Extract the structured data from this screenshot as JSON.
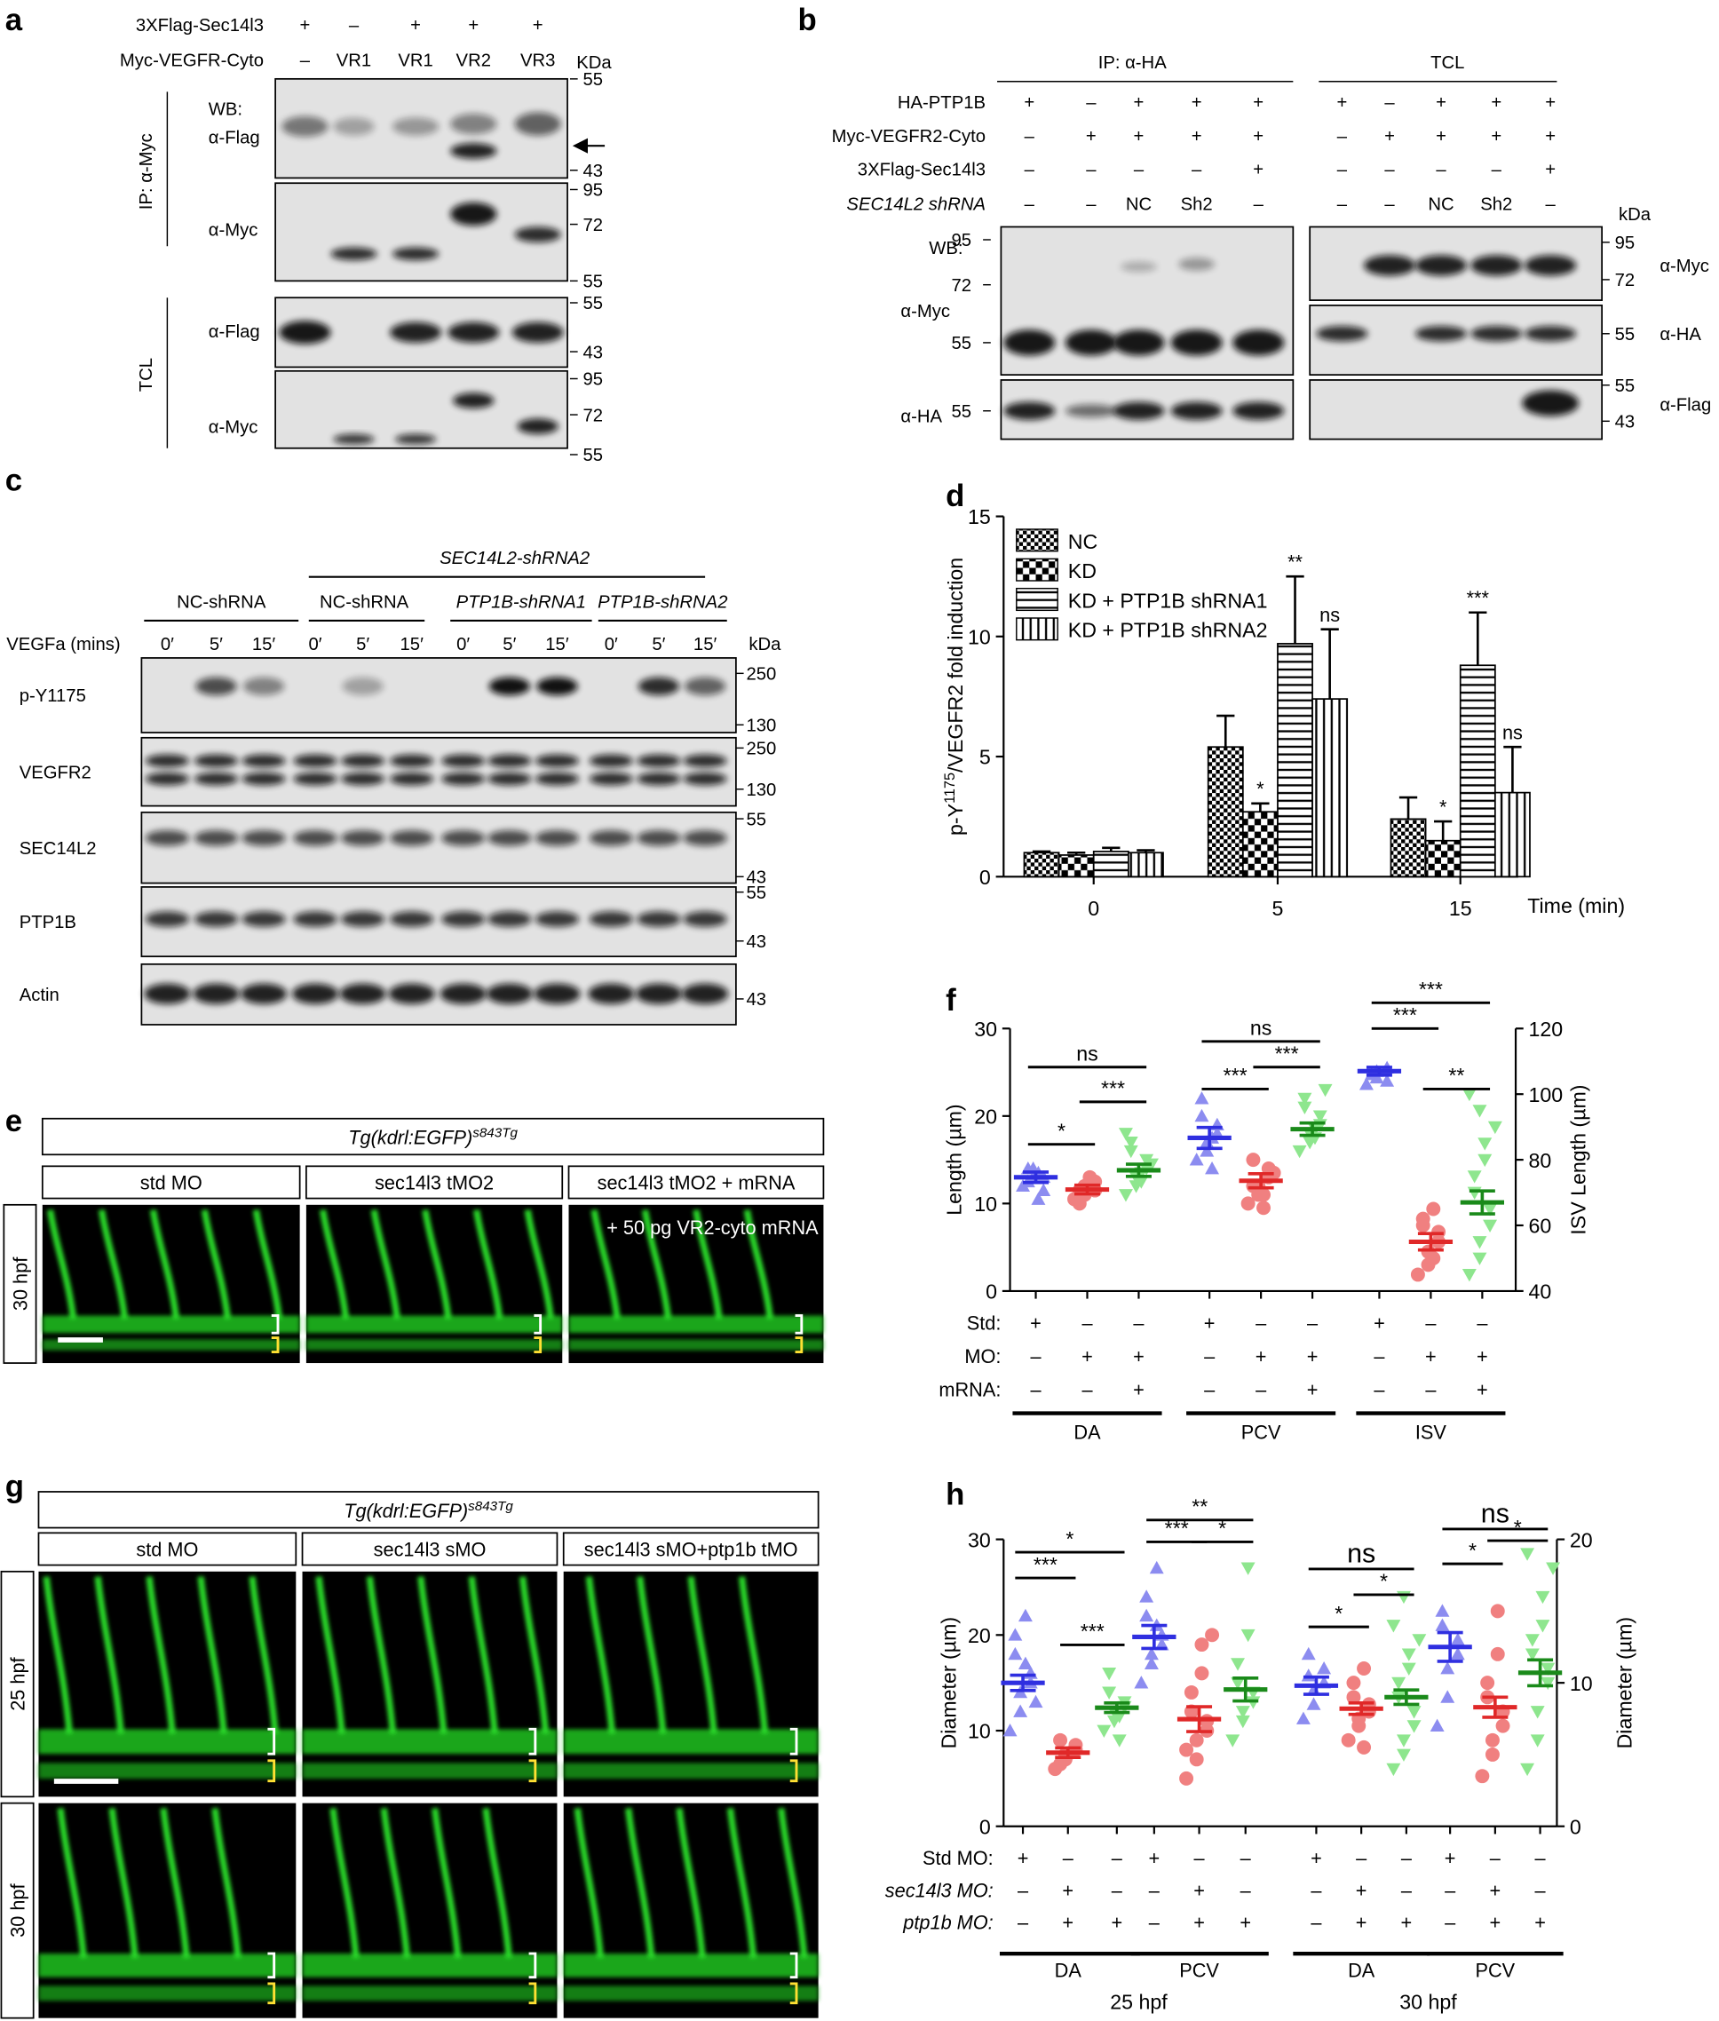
{
  "panel_a": {
    "letter": "a",
    "conditions": [
      {
        "label": "3XFlag-Sec14l3",
        "values": [
          "+",
          "–",
          "+",
          "+",
          "+"
        ]
      },
      {
        "label": "Myc-VEGFR-Cyto",
        "values": [
          "–",
          "VR1",
          "VR1",
          "VR2",
          "VR3"
        ]
      }
    ],
    "unit": "KDa",
    "groups": [
      "IP: α-Myc",
      "TCL"
    ],
    "blots": [
      {
        "labels": [
          "WB:",
          "α-Flag"
        ],
        "markers": [
          55,
          43
        ]
      },
      {
        "labels": [
          "α-Myc"
        ],
        "markers": [
          95,
          72,
          55
        ]
      },
      {
        "labels": [
          "α-Flag"
        ],
        "markers": [
          55,
          43
        ]
      },
      {
        "labels": [
          "α-Myc"
        ],
        "markers": [
          95,
          72,
          55
        ]
      }
    ]
  },
  "panel_b": {
    "letter": "b",
    "groups": [
      "IP: α-HA",
      "TCL"
    ],
    "conditions": [
      {
        "label": "HA-PTP1B",
        "values": [
          "+",
          "–",
          "+",
          "+",
          "+",
          "+",
          "–",
          "+",
          "+",
          "+"
        ]
      },
      {
        "label": "Myc-VEGFR2-Cyto",
        "values": [
          "–",
          "+",
          "+",
          "+",
          "+",
          "–",
          "+",
          "+",
          "+",
          "+"
        ]
      },
      {
        "label": "3XFlag-Sec14l3",
        "values": [
          "–",
          "–",
          "–",
          "–",
          "+",
          "–",
          "–",
          "–",
          "–",
          "+"
        ]
      },
      {
        "label": "SEC14L2 shRNA",
        "values": [
          "–",
          "–",
          "NC",
          "Sh2",
          "–",
          "–",
          "–",
          "NC",
          "Sh2",
          "–"
        ]
      }
    ],
    "unit": "kDa",
    "wb": "WB:",
    "blots": [
      {
        "label": "α-Myc",
        "markers": [
          95,
          72,
          55
        ]
      },
      {
        "label": "α-HA",
        "markers": [
          55
        ]
      },
      {
        "label": "α-Myc",
        "markers": [
          95,
          72
        ]
      },
      {
        "label": "α-HA",
        "markers": [
          55
        ]
      },
      {
        "label": "α-Flag",
        "markers": [
          55,
          43
        ]
      }
    ]
  },
  "panel_c": {
    "letter": "c",
    "treatment": "SEC14L2-shRNA2",
    "groups": [
      "NC-shRNA",
      "NC-shRNA",
      "PTP1B-shRNA1",
      "PTP1B-shRNA2"
    ],
    "time_label": "VEGFa (mins)",
    "times": [
      "0′",
      "5′",
      "15′",
      "0′",
      "5′",
      "15′",
      "0′",
      "5′",
      "15′",
      "0′",
      "5′",
      "15′"
    ],
    "unit": "kDa",
    "blots": [
      {
        "label": "p-Y1175",
        "markers": [
          250,
          130
        ]
      },
      {
        "label": "VEGFR2",
        "markers": [
          250,
          130
        ]
      },
      {
        "label": "SEC14L2",
        "markers": [
          55,
          43
        ]
      },
      {
        "label": "PTP1B",
        "markers": [
          55,
          43
        ]
      },
      {
        "label": "Actin",
        "markers": [
          43
        ]
      }
    ]
  },
  "panel_e": {
    "letter": "e",
    "title": {
      "text": "Tg(kdrl:EGFP)",
      "sup": "s843Tg"
    },
    "conditions": [
      "std MO",
      "sec14l3 tMO2",
      "sec14l3 tMO2 + mRNA"
    ],
    "stages": [
      "30 hpf"
    ],
    "rescue": "+ 50 pg VR2-cyto mRNA"
  },
  "panel_g": {
    "letter": "g",
    "title": {
      "text": "Tg(kdrl:EGFP)",
      "sup": "s843Tg"
    },
    "conditions": [
      "std MO",
      "sec14l3 sMO",
      "sec14l3 sMO+ptp1b tMO"
    ],
    "stages": [
      "25 hpf",
      "30 hpf"
    ]
  },
  "chart_data": [
    {
      "type": "bar",
      "letter": "d",
      "y_label": {
        "prefix": "p-Y",
        "sup": "1175",
        "suffix": "/VEGFR2 fold induction"
      },
      "x_label": "Time (min)",
      "categories": [
        "0",
        "5",
        "15"
      ],
      "ylim": [
        0,
        15
      ],
      "yticks": [
        0,
        5,
        10,
        15
      ],
      "legend": "top-left",
      "series": [
        {
          "name": "NC",
          "pattern": "fine-check",
          "values": [
            1.0,
            5.4,
            2.4
          ],
          "errors": [
            0.05,
            1.3,
            0.9
          ],
          "annotations": [
            null,
            null,
            null
          ]
        },
        {
          "name": "KD",
          "pattern": "check",
          "values": [
            0.9,
            2.7,
            1.5
          ],
          "errors": [
            0.1,
            0.35,
            0.8
          ],
          "annotations": [
            null,
            "*",
            "*"
          ]
        },
        {
          "name": "KD + PTP1B shRNA1",
          "pattern": "horizontal",
          "values": [
            1.05,
            9.7,
            8.8
          ],
          "errors": [
            0.15,
            2.8,
            2.2
          ],
          "annotations": [
            null,
            "**",
            "***"
          ]
        },
        {
          "name": "KD + PTP1B shRNA2",
          "pattern": "vertical",
          "values": [
            1.0,
            7.4,
            3.5
          ],
          "errors": [
            0.1,
            2.9,
            1.9
          ],
          "annotations": [
            null,
            "ns",
            "ns"
          ]
        }
      ]
    },
    {
      "type": "dot",
      "letter": "f",
      "y_label": "Length (µm)",
      "y2_label": "ISV Length (µm)",
      "ylim": [
        0,
        30
      ],
      "yticks": [
        0,
        10,
        20,
        30
      ],
      "y2lim": [
        40,
        120
      ],
      "y2ticks": [
        40,
        60,
        80,
        100,
        120
      ],
      "row_labels": [
        "Std:",
        "MO:",
        "mRNA:"
      ],
      "clusters": [
        {
          "name": "DA",
          "comparisons": [
            "ns",
            "*",
            "***"
          ],
          "groups": [
            {
              "color": "#2f2fe0",
              "point_color": "#8c8cf0",
              "marker": "triangle-up",
              "signs": [
                "+",
                "–",
                "–"
              ],
              "mean": 13,
              "error": 0.6,
              "values": [
                12,
                13,
                14,
                11.5,
                13,
                12.5,
                14,
                13.5,
                10.5
              ]
            },
            {
              "color": "#e02828",
              "point_color": "#f08080",
              "marker": "circle",
              "signs": [
                "–",
                "+",
                "–"
              ],
              "mean": 11.6,
              "error": 0.5,
              "values": [
                10.5,
                11,
                12,
                11.5,
                12.5,
                10,
                11.5,
                13,
                12
              ]
            },
            {
              "color": "#1a8a1a",
              "point_color": "#8ee68e",
              "marker": "triangle-down",
              "signs": [
                "–",
                "+",
                "+"
              ],
              "mean": 13.8,
              "error": 0.7,
              "values": [
                11,
                12,
                13,
                14,
                15,
                16,
                17,
                13.5,
                12.5,
                14.5,
                18
              ]
            }
          ]
        },
        {
          "name": "PCV",
          "comparisons": [
            "ns",
            "***",
            "***"
          ],
          "groups": [
            {
              "color": "#2f2fe0",
              "point_color": "#8c8cf0",
              "marker": "triangle-up",
              "signs": [
                "+",
                "–",
                "–"
              ],
              "mean": 17.5,
              "error": 1.2,
              "values": [
                15,
                16,
                17,
                18,
                19,
                20,
                22,
                14,
                17.5
              ]
            },
            {
              "color": "#e02828",
              "point_color": "#f08080",
              "marker": "circle",
              "signs": [
                "–",
                "+",
                "–"
              ],
              "mean": 12.6,
              "error": 0.8,
              "values": [
                10,
                11,
                12,
                13,
                14,
                15,
                12,
                11,
                9.5,
                13.5
              ]
            },
            {
              "color": "#1a8a1a",
              "point_color": "#8ee68e",
              "marker": "triangle-down",
              "signs": [
                "–",
                "+",
                "+"
              ],
              "mean": 18.5,
              "error": 0.7,
              "values": [
                16,
                17,
                18,
                19,
                20,
                21,
                22,
                18.5,
                17.5,
                23
              ]
            }
          ]
        },
        {
          "name": "ISV",
          "axis": "y2",
          "comparisons": [
            "***",
            "***",
            "**"
          ],
          "groups": [
            {
              "color": "#2f2fe0",
              "point_color": "#8c8cf0",
              "marker": "triangle-up",
              "signs": [
                "+",
                "–",
                "–"
              ],
              "mean": 107,
              "error": 1.2,
              "values": [
                103,
                105,
                107,
                108,
                104,
                106
              ]
            },
            {
              "color": "#e02828",
              "point_color": "#f08080",
              "marker": "circle",
              "signs": [
                "–",
                "+",
                "–"
              ],
              "mean": 55,
              "error": 2.5,
              "values": [
                45,
                48,
                52,
                55,
                58,
                60,
                62,
                65,
                50
              ]
            },
            {
              "color": "#1a8a1a",
              "point_color": "#8ee68e",
              "marker": "triangle-down",
              "signs": [
                "–",
                "+",
                "+"
              ],
              "mean": 67,
              "error": 3.5,
              "values": [
                45,
                50,
                55,
                60,
                65,
                70,
                75,
                80,
                85,
                90,
                100,
                95
              ]
            }
          ]
        }
      ]
    },
    {
      "type": "dot",
      "letter": "h",
      "y_label": "Diameter (µm)",
      "y2_label": "Diameter (µm)",
      "ylim": [
        0,
        30
      ],
      "yticks": [
        0,
        10,
        20,
        30
      ],
      "y2lim": [
        0,
        20
      ],
      "y2ticks": [
        0,
        10,
        20
      ],
      "row_labels": [
        "Std MO:",
        "sec14l3 MO:",
        "ptp1b MO:"
      ],
      "stages": [
        "25 hpf",
        "30 hpf"
      ],
      "clusters": [
        {
          "name": "DA",
          "comparisons": [
            "*",
            "***",
            "***"
          ],
          "groups": [
            {
              "color": "#2f2fe0",
              "point_color": "#8c8cf0",
              "marker": "triangle-up",
              "signs": [
                "+",
                "–",
                "–"
              ],
              "mean": 15,
              "error": 0.8,
              "values": [
                10,
                12,
                14,
                15,
                16,
                18,
                20,
                22,
                17,
                13
              ]
            },
            {
              "color": "#e02828",
              "point_color": "#f08080",
              "marker": "circle",
              "signs": [
                "–",
                "+",
                "+"
              ],
              "mean": 7.7,
              "error": 0.5,
              "values": [
                6,
                7,
                7.5,
                8,
                8.5,
                9,
                6.5,
                7.7
              ]
            },
            {
              "color": "#1a8a1a",
              "point_color": "#8ee68e",
              "marker": "triangle-down",
              "signs": [
                "–",
                "–",
                "+"
              ],
              "mean": 12.4,
              "error": 0.5,
              "values": [
                10,
                11,
                12,
                12.5,
                13,
                14,
                16,
                11.5,
                9
              ]
            }
          ]
        },
        {
          "name": "PCV",
          "comparisons": [
            "**",
            "***",
            "*"
          ],
          "groups": [
            {
              "color": "#2f2fe0",
              "point_color": "#8c8cf0",
              "marker": "triangle-up",
              "signs": [
                "+",
                "–",
                "–"
              ],
              "mean": 19.8,
              "error": 1.2,
              "values": [
                15,
                17,
                18,
                19,
                20,
                22,
                24,
                27,
                21
              ]
            },
            {
              "color": "#e02828",
              "point_color": "#f08080",
              "marker": "circle",
              "signs": [
                "–",
                "+",
                "+"
              ],
              "mean": 11.2,
              "error": 1.3,
              "values": [
                5,
                7,
                9,
                10,
                11,
                12,
                14,
                16,
                19,
                20,
                8
              ]
            },
            {
              "color": "#1a8a1a",
              "point_color": "#8ee68e",
              "marker": "triangle-down",
              "signs": [
                "–",
                "–",
                "+"
              ],
              "mean": 14.3,
              "error": 1.2,
              "values": [
                9,
                11,
                12,
                13,
                14,
                15,
                17,
                20,
                27
              ]
            }
          ]
        },
        {
          "name": "DA",
          "axis": "y2",
          "comparisons": [
            "ns",
            "*",
            "*"
          ],
          "groups": [
            {
              "color": "#2f2fe0",
              "point_color": "#8c8cf0",
              "marker": "triangle-up",
              "signs": [
                "+",
                "–",
                "–"
              ],
              "mean": 9.8,
              "error": 0.6,
              "values": [
                7.5,
                8.5,
                9.5,
                10,
                11,
                12,
                10.5
              ]
            },
            {
              "color": "#e02828",
              "point_color": "#f08080",
              "marker": "circle",
              "signs": [
                "–",
                "+",
                "+"
              ],
              "mean": 8.2,
              "error": 0.4,
              "values": [
                6,
                7,
                7.5,
                8,
                8.5,
                9,
                10,
                11,
                5.5
              ]
            },
            {
              "color": "#1a8a1a",
              "point_color": "#8ee68e",
              "marker": "triangle-down",
              "signs": [
                "–",
                "–",
                "+"
              ],
              "mean": 9.0,
              "error": 0.5,
              "values": [
                4,
                5,
                6,
                7,
                8,
                9,
                10,
                11,
                12,
                13,
                14,
                16
              ]
            }
          ]
        },
        {
          "name": "PCV",
          "axis": "y2",
          "comparisons": [
            "ns",
            "*",
            "*"
          ],
          "groups": [
            {
              "color": "#2f2fe0",
              "point_color": "#8c8cf0",
              "marker": "triangle-up",
              "signs": [
                "+",
                "–",
                "–"
              ],
              "mean": 12.5,
              "error": 1.0,
              "values": [
                7,
                9,
                11,
                12,
                13,
                14,
                15
              ]
            },
            {
              "color": "#e02828",
              "point_color": "#f08080",
              "marker": "circle",
              "signs": [
                "–",
                "+",
                "+"
              ],
              "mean": 8.3,
              "error": 0.7,
              "values": [
                3.5,
                5,
                6,
                7,
                8,
                9,
                10,
                12,
                15
              ]
            },
            {
              "color": "#1a8a1a",
              "point_color": "#8ee68e",
              "marker": "triangle-down",
              "signs": [
                "–",
                "–",
                "+"
              ],
              "mean": 10.7,
              "error": 0.9,
              "values": [
                4,
                6,
                8,
                10,
                11,
                12,
                13,
                14,
                16,
                18,
                19
              ]
            }
          ]
        }
      ]
    }
  ]
}
